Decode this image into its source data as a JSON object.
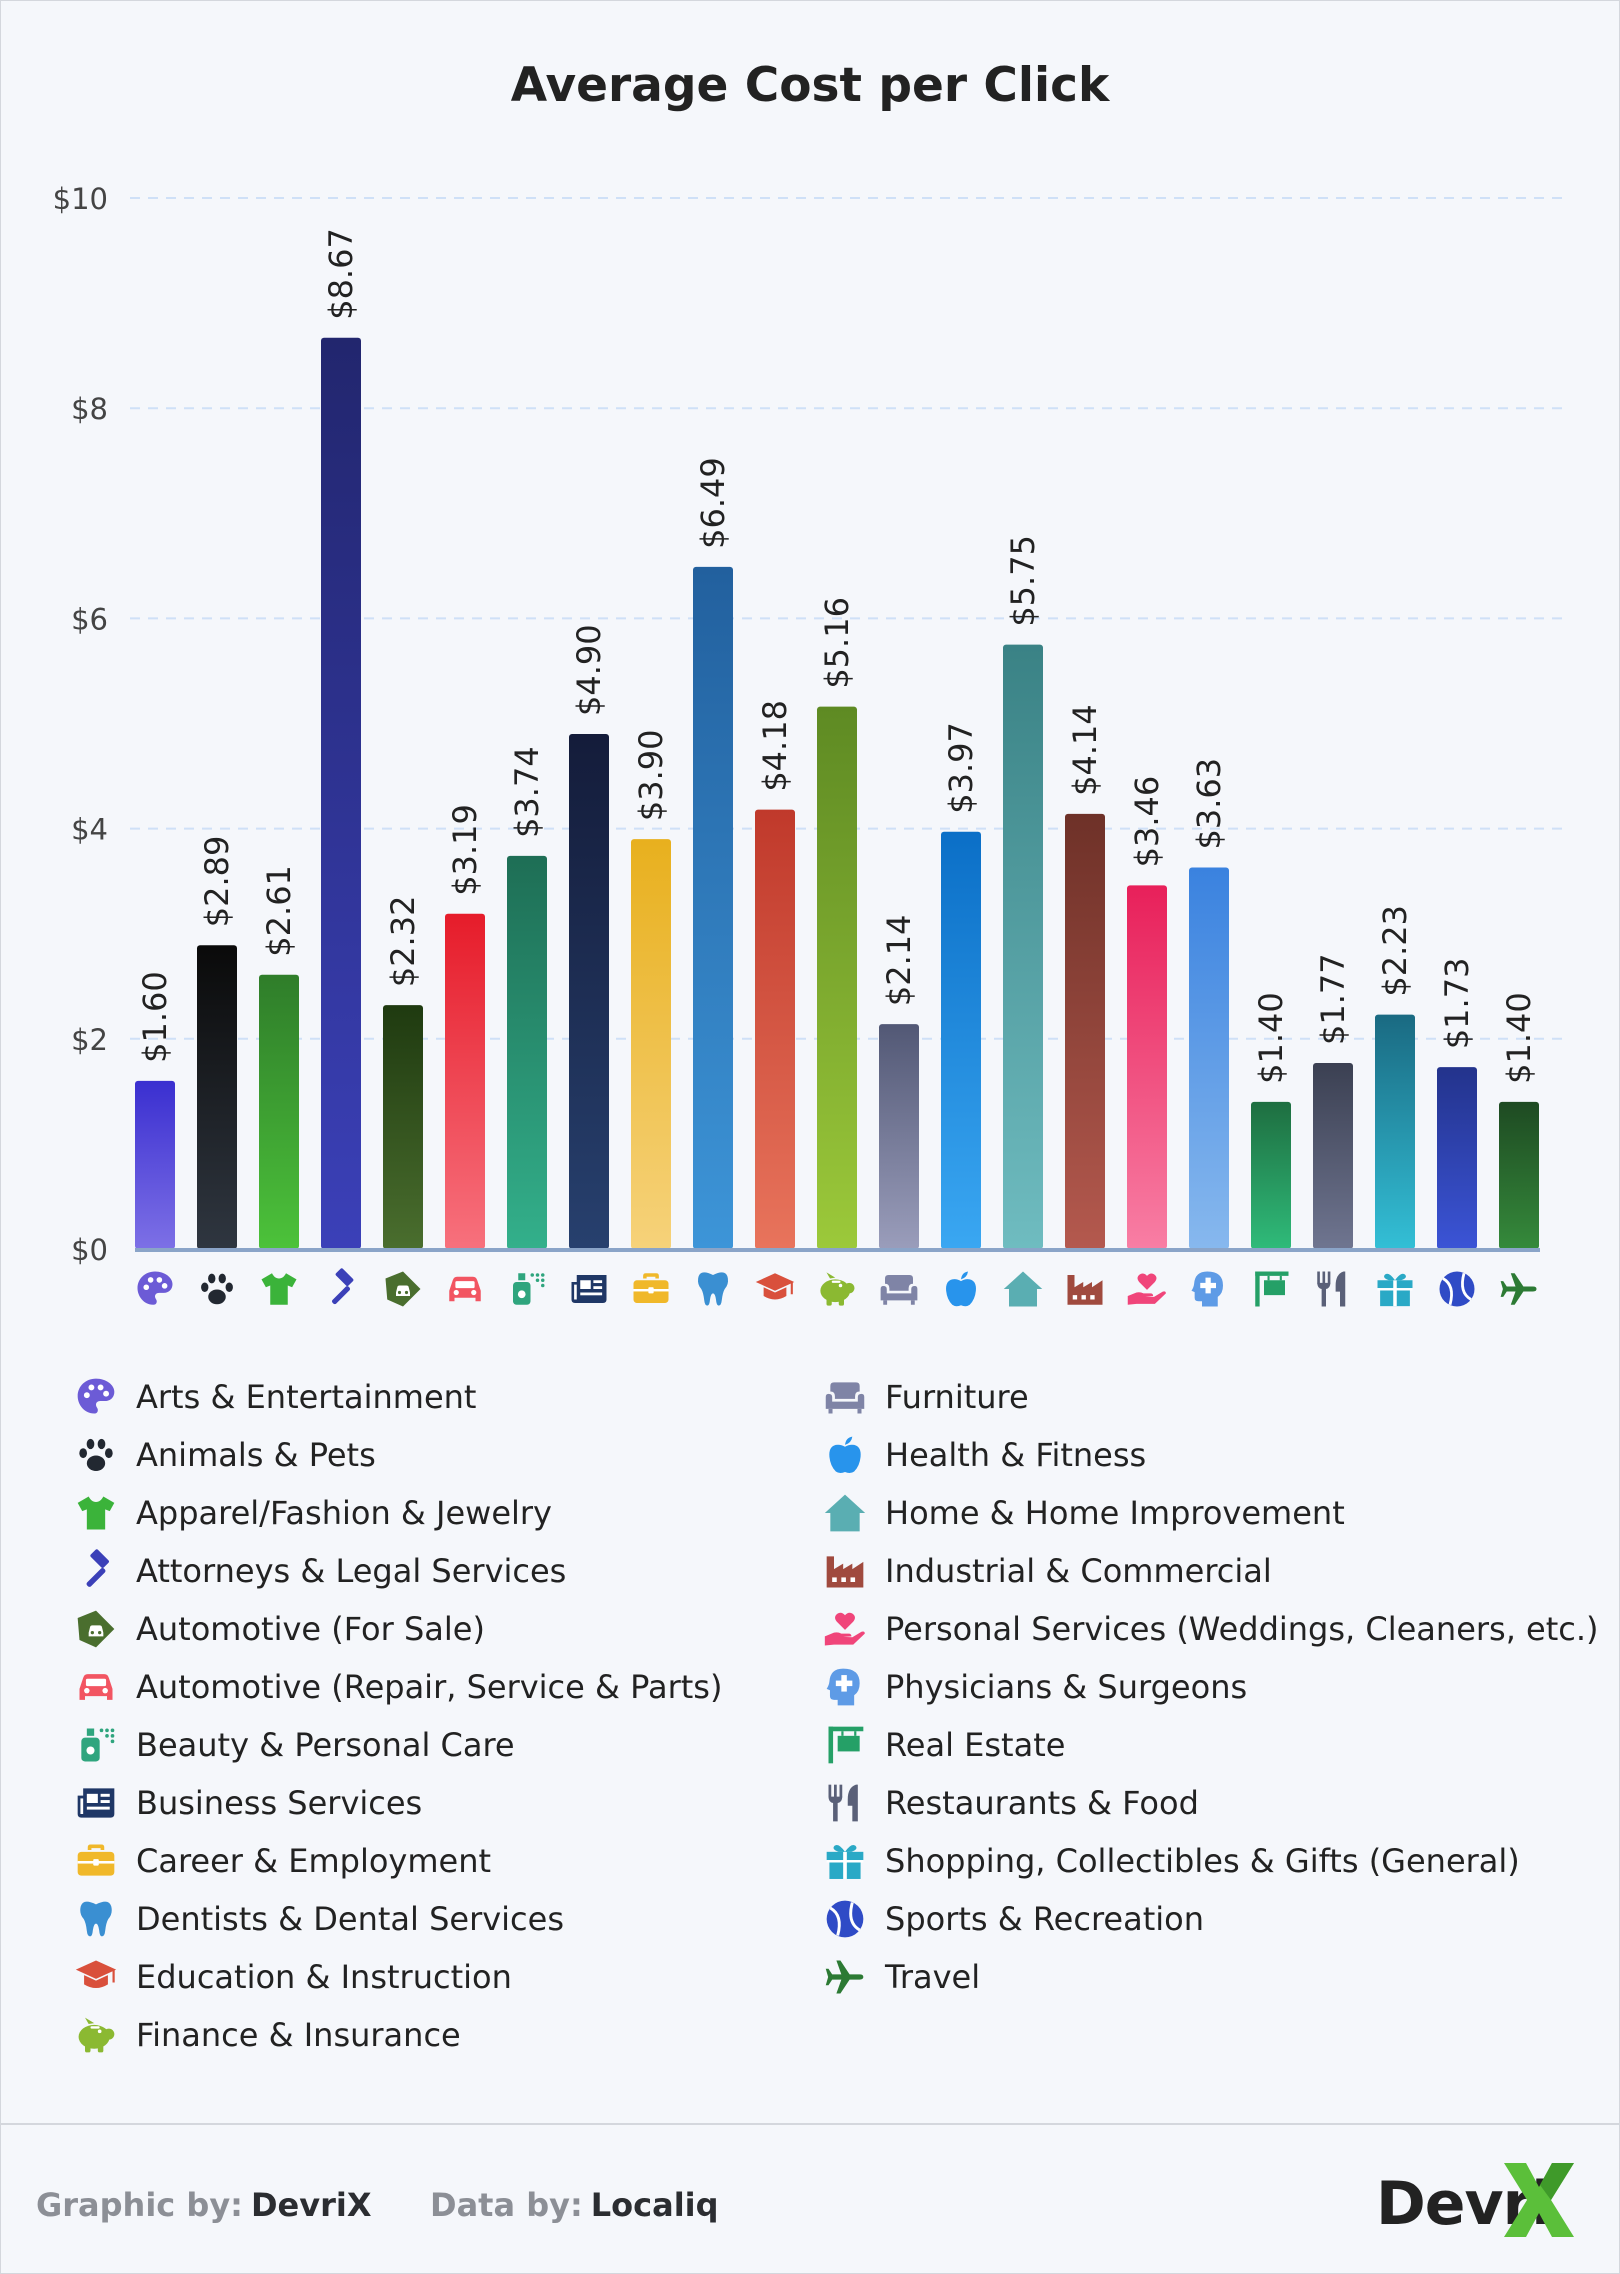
{
  "chart_data": {
    "type": "bar",
    "title": "Average Cost per Click",
    "xlabel": "",
    "ylabel": "",
    "ylim": [
      0,
      10
    ],
    "yticks": [
      "$0",
      "$2",
      "$4",
      "$6",
      "$8",
      "$10"
    ],
    "ytick_values": [
      0,
      2,
      4,
      6,
      8,
      10
    ],
    "grid": true,
    "categories": [
      "Arts & Entertainment",
      "Animals & Pets",
      "Apparel/Fashion & Jewelry",
      "Attorneys & Legal Services",
      "Automotive (For Sale)",
      "Automotive (Repair, Service & Parts)",
      "Beauty & Personal Care",
      "Business Services",
      "Career & Employment",
      "Dentists & Dental Services",
      "Education & Instruction",
      "Finance & Insurance",
      "Furniture",
      "Health & Fitness",
      "Home & Home Improvement",
      "Industrial & Commercial",
      "Personal Services (Weddings, Cleaners, etc.)",
      "Physicians & Surgeons",
      "Real Estate",
      "Restaurants & Food",
      "Shopping, Collectibles & Gifts (General)",
      "Sports & Recreation",
      "Travel"
    ],
    "values": [
      1.6,
      2.89,
      2.61,
      8.67,
      2.32,
      3.19,
      3.74,
      4.9,
      3.9,
      6.49,
      4.18,
      5.16,
      2.14,
      3.97,
      5.75,
      4.14,
      3.46,
      3.63,
      1.4,
      1.77,
      2.23,
      1.73,
      1.4
    ],
    "value_labels": [
      "$1.60",
      "$2.89",
      "$2.61",
      "$8.67",
      "$2.32",
      "$3.19",
      "$3.74",
      "$4.90",
      "$3.90",
      "$6.49",
      "$4.18",
      "$5.16",
      "$2.14",
      "$3.97",
      "$5.75",
      "$4.14",
      "$3.46",
      "$3.63",
      "$1.40",
      "$1.77",
      "$2.23",
      "$1.73",
      "$1.40"
    ],
    "bar_colors": [
      [
        "#3a2fd0",
        "#7d70e6"
      ],
      [
        "#0a0a0a",
        "#2f3640"
      ],
      [
        "#2f7d2a",
        "#4cc23a"
      ],
      [
        "#22266e",
        "#3b40b8"
      ],
      [
        "#1f3a10",
        "#4a6e2e"
      ],
      [
        "#e61c2a",
        "#f7717d"
      ],
      [
        "#1e6e55",
        "#33b08b"
      ],
      [
        "#141c3a",
        "#27406e"
      ],
      [
        "#e8b01e",
        "#f6d27a"
      ],
      [
        "#22609e",
        "#3d95d8"
      ],
      [
        "#c0392b",
        "#e8745c"
      ],
      [
        "#5e8a23",
        "#9cc93a"
      ],
      [
        "#525875",
        "#9a9dbb"
      ],
      [
        "#0b6fc7",
        "#3aa7f2"
      ],
      [
        "#3a8285",
        "#6fbcc0"
      ],
      [
        "#6e3128",
        "#b4594e"
      ],
      [
        "#e8205a",
        "#f87ea4"
      ],
      [
        "#3a82df",
        "#87b8ee"
      ],
      [
        "#1e6e40",
        "#2fbb7a"
      ],
      [
        "#3b4052",
        "#6f7590"
      ],
      [
        "#1a6a82",
        "#33bfd6"
      ],
      [
        "#23338c",
        "#3b54d6"
      ],
      [
        "#1e4a22",
        "#358a3b"
      ]
    ]
  },
  "icons": [
    {
      "name": "palette-icon",
      "color": "#6c5bd6"
    },
    {
      "name": "paw-icon",
      "color": "#222831"
    },
    {
      "name": "tshirt-icon",
      "color": "#3bb33a"
    },
    {
      "name": "gavel-icon",
      "color": "#3b40b8"
    },
    {
      "name": "car-tag-icon",
      "color": "#4a6e2e"
    },
    {
      "name": "car-icon",
      "color": "#f25562"
    },
    {
      "name": "perfume-icon",
      "color": "#2fa57e"
    },
    {
      "name": "newspaper-icon",
      "color": "#1f3766"
    },
    {
      "name": "briefcase-icon",
      "color": "#f0b82a"
    },
    {
      "name": "tooth-icon",
      "color": "#3a8fd2"
    },
    {
      "name": "graduation-cap-icon",
      "color": "#d9503c"
    },
    {
      "name": "piggy-bank-icon",
      "color": "#8bb932"
    },
    {
      "name": "couch-icon",
      "color": "#7f84a6"
    },
    {
      "name": "apple-icon",
      "color": "#2894ec"
    },
    {
      "name": "house-icon",
      "color": "#5aaeb2"
    },
    {
      "name": "industry-icon",
      "color": "#a04a3e"
    },
    {
      "name": "hand-heart-icon",
      "color": "#f0457a"
    },
    {
      "name": "head-medical-icon",
      "color": "#5e9be6"
    },
    {
      "name": "sign-icon",
      "color": "#25a067"
    },
    {
      "name": "utensils-icon",
      "color": "#5a6078"
    },
    {
      "name": "gift-icon",
      "color": "#2aa9c6"
    },
    {
      "name": "ball-icon",
      "color": "#2f4bc6"
    },
    {
      "name": "plane-icon",
      "color": "#2c7a34"
    }
  ],
  "legend": {
    "left": [
      "Arts & Entertainment",
      "Animals & Pets",
      "Apparel/Fashion & Jewelry",
      "Attorneys & Legal Services",
      "Automotive (For Sale)",
      "Automotive (Repair, Service & Parts)",
      "Beauty & Personal Care",
      "Business Services",
      "Career & Employment",
      "Dentists & Dental Services",
      "Education & Instruction",
      "Finance & Insurance"
    ],
    "right": [
      "Furniture",
      "Health & Fitness",
      "Home & Home Improvement",
      "Industrial & Commercial",
      "Personal Services (Weddings, Cleaners, etc.)",
      "Physicians & Surgeons",
      "Real Estate",
      "Restaurants & Food",
      "Shopping, Collectibles & Gifts (General)",
      "Sports & Recreation",
      "Travel"
    ]
  },
  "footer": {
    "graphic_by_label": "Graphic by:",
    "graphic_by_value": "DevriX",
    "data_by_label": "Data by:",
    "data_by_value": "Localiq",
    "logo_text": "Devri",
    "logo_accent": "#5bbf3a"
  }
}
